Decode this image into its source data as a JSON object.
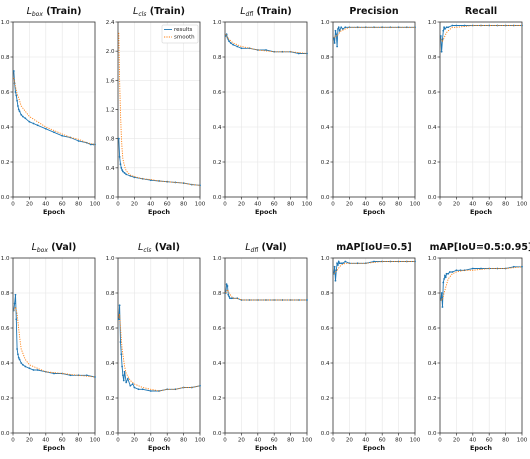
{
  "chart_data": [
    {
      "type": "line",
      "title": "L_box (Train)",
      "title_main": "L",
      "title_sub": "box",
      "title_rest": " (Train)",
      "xlabel": "Epoch",
      "xlim": [
        0,
        100
      ],
      "ylim": [
        0,
        1.0
      ],
      "xticks": [
        0,
        20,
        40,
        60,
        80,
        100
      ],
      "yticks": [
        0.0,
        0.2,
        0.4,
        0.6,
        0.8,
        1.0
      ],
      "grid": true,
      "series": [
        {
          "name": "results",
          "color": "#1f77b4",
          "style": "solid-markers",
          "x": [
            1,
            2,
            3,
            4,
            5,
            6,
            7,
            8,
            10,
            12,
            15,
            20,
            25,
            30,
            40,
            50,
            60,
            70,
            80,
            90,
            95,
            98,
            100
          ],
          "y": [
            0.72,
            0.65,
            0.6,
            0.58,
            0.55,
            0.52,
            0.5,
            0.49,
            0.47,
            0.46,
            0.45,
            0.43,
            0.42,
            0.41,
            0.39,
            0.37,
            0.35,
            0.34,
            0.32,
            0.31,
            0.3,
            0.3,
            0.3
          ]
        },
        {
          "name": "smooth",
          "color": "#ff7f0e",
          "style": "dotted",
          "x": [
            1,
            3,
            5,
            8,
            10,
            15,
            20,
            30,
            40,
            50,
            60,
            70,
            80,
            90,
            100
          ],
          "y": [
            0.68,
            0.63,
            0.59,
            0.55,
            0.52,
            0.49,
            0.46,
            0.43,
            0.4,
            0.38,
            0.36,
            0.34,
            0.33,
            0.31,
            0.3
          ]
        }
      ]
    },
    {
      "type": "line",
      "title": "L_cls (Train)",
      "title_main": "L",
      "title_sub": "cls",
      "title_rest": " (Train)",
      "xlabel": "Epoch",
      "xlim": [
        0,
        100
      ],
      "ylim": [
        0,
        2.4
      ],
      "xticks": [
        0,
        20,
        40,
        60,
        80,
        100
      ],
      "yticks": [
        0.0,
        0.4,
        0.8,
        1.2,
        1.6,
        2.0,
        2.4
      ],
      "grid": true,
      "legend": "top-right",
      "series": [
        {
          "name": "results",
          "color": "#1f77b4",
          "style": "solid-markers",
          "x": [
            1,
            2,
            3,
            4,
            5,
            6,
            8,
            10,
            15,
            20,
            30,
            40,
            50,
            60,
            70,
            80,
            90,
            100
          ],
          "y": [
            0.8,
            0.55,
            0.45,
            0.4,
            0.37,
            0.35,
            0.33,
            0.31,
            0.29,
            0.27,
            0.25,
            0.23,
            0.22,
            0.21,
            0.2,
            0.19,
            0.17,
            0.16
          ]
        },
        {
          "name": "smooth",
          "color": "#ff7f0e",
          "style": "dotted",
          "x": [
            1,
            2,
            3,
            4,
            5,
            6,
            8,
            10,
            15,
            20,
            30,
            40,
            50,
            60,
            70,
            80,
            90,
            100
          ],
          "y": [
            2.25,
            1.6,
            1.15,
            0.85,
            0.65,
            0.52,
            0.42,
            0.36,
            0.3,
            0.28,
            0.25,
            0.24,
            0.22,
            0.21,
            0.2,
            0.19,
            0.17,
            0.16
          ]
        }
      ]
    },
    {
      "type": "line",
      "title": "L_dfl (Train)",
      "title_main": "L",
      "title_sub": "dfl",
      "title_rest": " (Train)",
      "xlabel": "Epoch",
      "xlim": [
        0,
        100
      ],
      "ylim": [
        0,
        1.0
      ],
      "xticks": [
        0,
        20,
        40,
        60,
        80,
        100
      ],
      "yticks": [
        0.0,
        0.2,
        0.4,
        0.6,
        0.8,
        1.0
      ],
      "grid": true,
      "series": [
        {
          "name": "results",
          "color": "#1f77b4",
          "style": "solid-markers",
          "x": [
            1,
            2,
            3,
            4,
            5,
            7,
            10,
            15,
            20,
            30,
            40,
            50,
            60,
            70,
            80,
            90,
            100
          ],
          "y": [
            0.92,
            0.93,
            0.91,
            0.9,
            0.89,
            0.88,
            0.87,
            0.86,
            0.85,
            0.85,
            0.84,
            0.84,
            0.83,
            0.83,
            0.83,
            0.82,
            0.82
          ]
        },
        {
          "name": "smooth",
          "color": "#ff7f0e",
          "style": "dotted",
          "x": [
            1,
            3,
            5,
            10,
            20,
            40,
            60,
            80,
            100
          ],
          "y": [
            0.93,
            0.91,
            0.9,
            0.88,
            0.86,
            0.84,
            0.83,
            0.83,
            0.82
          ]
        }
      ]
    },
    {
      "type": "line",
      "title": "Precision",
      "title_main": "Precision",
      "title_sub": "",
      "title_rest": "",
      "xlabel": "Epoch",
      "xlim": [
        0,
        100
      ],
      "ylim": [
        0,
        1.0
      ],
      "xticks": [
        0,
        20,
        40,
        60,
        80,
        100
      ],
      "yticks": [
        0.0,
        0.2,
        0.4,
        0.6,
        0.8,
        1.0
      ],
      "grid": true,
      "series": [
        {
          "name": "results",
          "color": "#1f77b4",
          "style": "solid-markers",
          "x": [
            1,
            2,
            3,
            4,
            5,
            6,
            7,
            8,
            10,
            12,
            15,
            20,
            30,
            40,
            50,
            60,
            70,
            80,
            90,
            100
          ],
          "y": [
            0.91,
            0.88,
            0.95,
            0.93,
            0.86,
            0.96,
            0.97,
            0.95,
            0.97,
            0.96,
            0.97,
            0.97,
            0.97,
            0.97,
            0.97,
            0.97,
            0.97,
            0.97,
            0.97,
            0.97
          ]
        },
        {
          "name": "smooth",
          "color": "#ff7f0e",
          "style": "dotted",
          "x": [
            1,
            3,
            5,
            8,
            10,
            15,
            20,
            40,
            60,
            80,
            100
          ],
          "y": [
            0.91,
            0.92,
            0.92,
            0.94,
            0.95,
            0.96,
            0.97,
            0.97,
            0.97,
            0.97,
            0.97
          ]
        }
      ]
    },
    {
      "type": "line",
      "title": "Recall",
      "title_main": "Recall",
      "title_sub": "",
      "title_rest": "",
      "xlabel": "Epoch",
      "xlim": [
        0,
        100
      ],
      "ylim": [
        0,
        1.0
      ],
      "xticks": [
        0,
        20,
        40,
        60,
        80,
        100
      ],
      "yticks": [
        0.0,
        0.2,
        0.4,
        0.6,
        0.8,
        1.0
      ],
      "grid": true,
      "series": [
        {
          "name": "results",
          "color": "#1f77b4",
          "style": "solid-markers",
          "x": [
            1,
            2,
            3,
            4,
            5,
            6,
            8,
            10,
            15,
            20,
            30,
            40,
            50,
            60,
            70,
            80,
            90,
            100
          ],
          "y": [
            0.92,
            0.83,
            0.9,
            0.95,
            0.97,
            0.96,
            0.97,
            0.97,
            0.98,
            0.98,
            0.98,
            0.98,
            0.98,
            0.98,
            0.98,
            0.98,
            0.98,
            0.98
          ]
        },
        {
          "name": "smooth",
          "color": "#ff7f0e",
          "style": "dotted",
          "x": [
            1,
            3,
            5,
            8,
            10,
            15,
            20,
            40,
            60,
            80,
            100
          ],
          "y": [
            0.9,
            0.89,
            0.91,
            0.94,
            0.95,
            0.97,
            0.97,
            0.98,
            0.98,
            0.98,
            0.98
          ]
        }
      ]
    },
    {
      "type": "line",
      "title": "L_box (Val)",
      "title_main": "L",
      "title_sub": "box",
      "title_rest": " (Val)",
      "xlabel": "Epoch",
      "xlim": [
        0,
        100
      ],
      "ylim": [
        0,
        1.0
      ],
      "xticks": [
        0,
        20,
        40,
        60,
        80,
        100
      ],
      "yticks": [
        0.0,
        0.2,
        0.4,
        0.6,
        0.8,
        1.0
      ],
      "grid": true,
      "series": [
        {
          "name": "results",
          "color": "#1f77b4",
          "style": "solid-markers",
          "x": [
            1,
            2,
            3,
            4,
            5,
            6,
            7,
            8,
            10,
            12,
            15,
            20,
            25,
            30,
            40,
            50,
            60,
            70,
            80,
            90,
            100
          ],
          "y": [
            0.7,
            0.74,
            0.79,
            0.65,
            0.48,
            0.45,
            0.43,
            0.42,
            0.4,
            0.39,
            0.38,
            0.37,
            0.36,
            0.36,
            0.35,
            0.34,
            0.34,
            0.33,
            0.33,
            0.33,
            0.32
          ]
        },
        {
          "name": "smooth",
          "color": "#ff7f0e",
          "style": "dotted",
          "x": [
            1,
            3,
            5,
            8,
            10,
            15,
            20,
            30,
            40,
            60,
            80,
            100
          ],
          "y": [
            0.7,
            0.72,
            0.68,
            0.55,
            0.48,
            0.42,
            0.39,
            0.37,
            0.35,
            0.34,
            0.33,
            0.32
          ]
        }
      ]
    },
    {
      "type": "line",
      "title": "L_cls (Val)",
      "title_main": "L",
      "title_sub": "cls",
      "title_rest": " (Val)",
      "xlabel": "Epoch",
      "xlim": [
        0,
        100
      ],
      "ylim": [
        0,
        1.0
      ],
      "xticks": [
        0,
        20,
        40,
        60,
        80,
        100
      ],
      "yticks": [
        0.0,
        0.2,
        0.4,
        0.6,
        0.8,
        1.0
      ],
      "grid": true,
      "series": [
        {
          "name": "results",
          "color": "#1f77b4",
          "style": "solid-markers",
          "x": [
            1,
            2,
            3,
            4,
            5,
            6,
            7,
            8,
            10,
            12,
            15,
            18,
            20,
            25,
            30,
            40,
            50,
            60,
            70,
            80,
            90,
            100
          ],
          "y": [
            0.65,
            0.73,
            0.52,
            0.45,
            0.38,
            0.33,
            0.3,
            0.35,
            0.29,
            0.31,
            0.27,
            0.28,
            0.26,
            0.25,
            0.25,
            0.24,
            0.24,
            0.25,
            0.25,
            0.26,
            0.26,
            0.27
          ]
        },
        {
          "name": "smooth",
          "color": "#ff7f0e",
          "style": "dotted",
          "x": [
            1,
            2,
            3,
            5,
            8,
            10,
            15,
            20,
            30,
            40,
            50,
            60,
            70,
            80,
            90,
            100
          ],
          "y": [
            0.66,
            0.68,
            0.6,
            0.48,
            0.38,
            0.34,
            0.3,
            0.28,
            0.26,
            0.25,
            0.24,
            0.25,
            0.25,
            0.26,
            0.26,
            0.27
          ]
        }
      ]
    },
    {
      "type": "line",
      "title": "L_dfl (Val)",
      "title_main": "L",
      "title_sub": "dfl",
      "title_rest": " (Val)",
      "xlabel": "Epoch",
      "xlim": [
        0,
        100
      ],
      "ylim": [
        0,
        1.0
      ],
      "xticks": [
        0,
        20,
        40,
        60,
        80,
        100
      ],
      "yticks": [
        0.0,
        0.2,
        0.4,
        0.6,
        0.8,
        1.0
      ],
      "grid": true,
      "series": [
        {
          "name": "results",
          "color": "#1f77b4",
          "style": "solid-markers",
          "x": [
            1,
            2,
            3,
            4,
            5,
            6,
            8,
            10,
            15,
            20,
            30,
            40,
            50,
            60,
            70,
            80,
            90,
            100
          ],
          "y": [
            0.8,
            0.85,
            0.84,
            0.79,
            0.78,
            0.77,
            0.77,
            0.77,
            0.77,
            0.76,
            0.76,
            0.76,
            0.76,
            0.76,
            0.76,
            0.76,
            0.76,
            0.76
          ]
        },
        {
          "name": "smooth",
          "color": "#ff7f0e",
          "style": "dotted",
          "x": [
            1,
            3,
            5,
            8,
            10,
            15,
            20,
            40,
            60,
            80,
            100
          ],
          "y": [
            0.8,
            0.82,
            0.8,
            0.78,
            0.77,
            0.77,
            0.76,
            0.76,
            0.76,
            0.76,
            0.76
          ]
        }
      ]
    },
    {
      "type": "line",
      "title": "mAP[IoU=0.5]",
      "title_main": "mAP[IoU=0.5]",
      "title_sub": "",
      "title_rest": "",
      "xlabel": "Epoch",
      "xlim": [
        0,
        100
      ],
      "ylim": [
        0,
        1.0
      ],
      "xticks": [
        0,
        20,
        40,
        60,
        80,
        100
      ],
      "yticks": [
        0.0,
        0.2,
        0.4,
        0.6,
        0.8,
        1.0
      ],
      "grid": true,
      "series": [
        {
          "name": "results",
          "color": "#1f77b4",
          "style": "solid-markers",
          "x": [
            1,
            2,
            3,
            4,
            5,
            6,
            7,
            8,
            10,
            12,
            15,
            20,
            30,
            40,
            50,
            60,
            70,
            80,
            90,
            100
          ],
          "y": [
            0.91,
            0.95,
            0.87,
            0.93,
            0.97,
            0.96,
            0.98,
            0.97,
            0.97,
            0.97,
            0.98,
            0.97,
            0.97,
            0.97,
            0.98,
            0.98,
            0.98,
            0.98,
            0.98,
            0.98
          ]
        },
        {
          "name": "smooth",
          "color": "#ff7f0e",
          "style": "dotted",
          "x": [
            1,
            3,
            5,
            8,
            10,
            15,
            20,
            40,
            60,
            80,
            100
          ],
          "y": [
            0.91,
            0.92,
            0.93,
            0.95,
            0.96,
            0.97,
            0.97,
            0.97,
            0.98,
            0.98,
            0.98
          ]
        }
      ]
    },
    {
      "type": "line",
      "title": "mAP[IoU=0.5:0.95]",
      "title_main": "mAP[IoU=0.5:0.95]",
      "title_sub": "",
      "title_rest": "",
      "xlabel": "Epoch",
      "xlim": [
        0,
        100
      ],
      "ylim": [
        0,
        1.0
      ],
      "xticks": [
        0,
        20,
        40,
        60,
        80,
        100
      ],
      "yticks": [
        0.0,
        0.2,
        0.4,
        0.6,
        0.8,
        1.0
      ],
      "grid": true,
      "series": [
        {
          "name": "results",
          "color": "#1f77b4",
          "style": "solid-markers",
          "x": [
            1,
            2,
            3,
            4,
            5,
            6,
            7,
            8,
            10,
            12,
            15,
            20,
            25,
            30,
            40,
            50,
            60,
            70,
            80,
            90,
            100
          ],
          "y": [
            0.76,
            0.8,
            0.72,
            0.86,
            0.88,
            0.9,
            0.89,
            0.91,
            0.91,
            0.92,
            0.92,
            0.93,
            0.93,
            0.93,
            0.94,
            0.94,
            0.94,
            0.94,
            0.94,
            0.95,
            0.95
          ]
        },
        {
          "name": "smooth",
          "color": "#ff7f0e",
          "style": "dotted",
          "x": [
            1,
            3,
            5,
            8,
            10,
            15,
            20,
            30,
            40,
            60,
            80,
            100
          ],
          "y": [
            0.76,
            0.76,
            0.8,
            0.85,
            0.88,
            0.91,
            0.92,
            0.93,
            0.93,
            0.94,
            0.94,
            0.95
          ]
        }
      ]
    }
  ]
}
